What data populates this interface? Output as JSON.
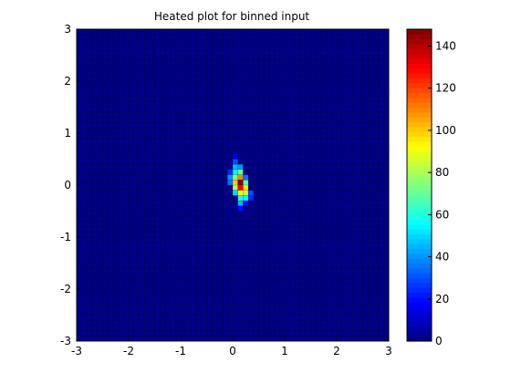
{
  "chart_data": {
    "type": "heatmap",
    "title": "Heated plot for binned input",
    "xlabel": "",
    "ylabel": "",
    "xlim": [
      -3,
      3
    ],
    "ylim": [
      -3,
      3
    ],
    "xticks": [
      -3,
      -2,
      -1,
      0,
      1,
      2,
      3
    ],
    "yticks": [
      -3,
      -2,
      -1,
      0,
      1,
      2,
      3
    ],
    "grid": true,
    "colormap": "jet",
    "colorbar": {
      "range": [
        0,
        148
      ],
      "ticks": [
        0,
        20,
        40,
        60,
        80,
        100,
        120,
        140
      ]
    },
    "bins": {
      "x_count": 60,
      "y_count": 60,
      "x_range": [
        -3,
        3
      ],
      "y_range": [
        -3,
        3
      ]
    },
    "hotspot": {
      "peak_value": 148,
      "center": [
        0.1,
        0.05
      ],
      "spread": "elongated, tilted",
      "cells": [
        {
          "x": 0.05,
          "y": 0.45,
          "v": 30
        },
        {
          "x": 0.05,
          "y": 0.35,
          "v": 45
        },
        {
          "x": 0.05,
          "y": 0.25,
          "v": 55
        },
        {
          "x": 0.05,
          "y": 0.15,
          "v": 75
        },
        {
          "x": 0.05,
          "y": 0.05,
          "v": 100
        },
        {
          "x": 0.05,
          "y": -0.05,
          "v": 80
        },
        {
          "x": 0.15,
          "y": 0.35,
          "v": 40
        },
        {
          "x": 0.15,
          "y": 0.25,
          "v": 70
        },
        {
          "x": 0.15,
          "y": 0.15,
          "v": 110
        },
        {
          "x": 0.15,
          "y": 0.05,
          "v": 148
        },
        {
          "x": 0.15,
          "y": -0.05,
          "v": 130
        },
        {
          "x": 0.15,
          "y": -0.15,
          "v": 90
        },
        {
          "x": 0.15,
          "y": -0.25,
          "v": 60
        },
        {
          "x": 0.15,
          "y": -0.35,
          "v": 45
        },
        {
          "x": -0.05,
          "y": 0.25,
          "v": 25
        },
        {
          "x": -0.05,
          "y": 0.15,
          "v": 40
        },
        {
          "x": -0.05,
          "y": 0.05,
          "v": 35
        },
        {
          "x": 0.25,
          "y": 0.05,
          "v": 70
        },
        {
          "x": 0.25,
          "y": -0.05,
          "v": 95
        },
        {
          "x": 0.25,
          "y": -0.15,
          "v": 85
        },
        {
          "x": 0.25,
          "y": -0.25,
          "v": 55
        },
        {
          "x": 0.25,
          "y": 0.15,
          "v": 35
        },
        {
          "x": 0.35,
          "y": -0.15,
          "v": 30
        },
        {
          "x": 0.35,
          "y": -0.25,
          "v": 25
        },
        {
          "x": 0.05,
          "y": -0.15,
          "v": 50
        },
        {
          "x": 0.05,
          "y": 0.55,
          "v": 15
        },
        {
          "x": 0.15,
          "y": -0.45,
          "v": 20
        },
        {
          "x": 0.25,
          "y": -0.35,
          "v": 20
        }
      ],
      "background_value": 1
    }
  }
}
